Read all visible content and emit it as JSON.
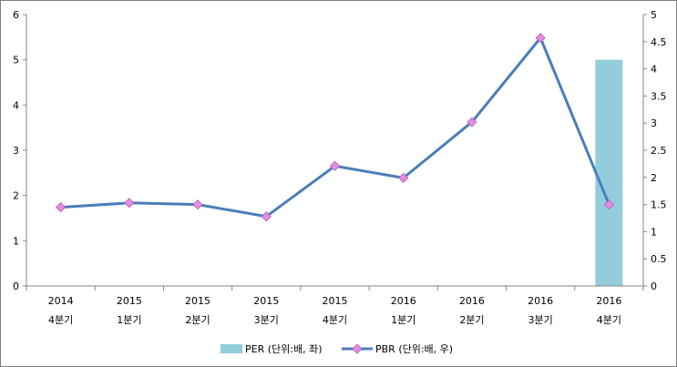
{
  "chart_data": {
    "type": "bar-line-combo",
    "categories": [
      [
        "2014",
        "4분기"
      ],
      [
        "2015",
        "1분기"
      ],
      [
        "2015",
        "2분기"
      ],
      [
        "2015",
        "3분기"
      ],
      [
        "2015",
        "4분기"
      ],
      [
        "2016",
        "1분기"
      ],
      [
        "2016",
        "2분기"
      ],
      [
        "2016",
        "3분기"
      ],
      [
        "2016",
        "4분기"
      ]
    ],
    "series": [
      {
        "name": "PER (단위:배, 좌)",
        "kind": "bar",
        "axis": "left",
        "color": "#92cddc",
        "values": [
          null,
          null,
          null,
          null,
          null,
          null,
          null,
          null,
          5.0
        ]
      },
      {
        "name": "PBR (단위:배, 우)",
        "kind": "line",
        "axis": "right",
        "color": "#4a7ebb",
        "marker_color": "#e58ce3",
        "values": [
          1.45,
          1.53,
          1.5,
          1.28,
          2.21,
          1.99,
          3.02,
          4.57,
          1.5
        ]
      }
    ],
    "y_left": {
      "ylim": [
        0,
        6
      ],
      "ticks": [
        "0",
        "1",
        "2",
        "3",
        "4",
        "5",
        "6"
      ]
    },
    "y_right": {
      "ylim": [
        0,
        5
      ],
      "ticks": [
        "0",
        "0.5",
        "1",
        "1.5",
        "2",
        "2.5",
        "3",
        "3.5",
        "4",
        "4.5",
        "5"
      ]
    },
    "grid": false,
    "legend_position": "bottom"
  }
}
